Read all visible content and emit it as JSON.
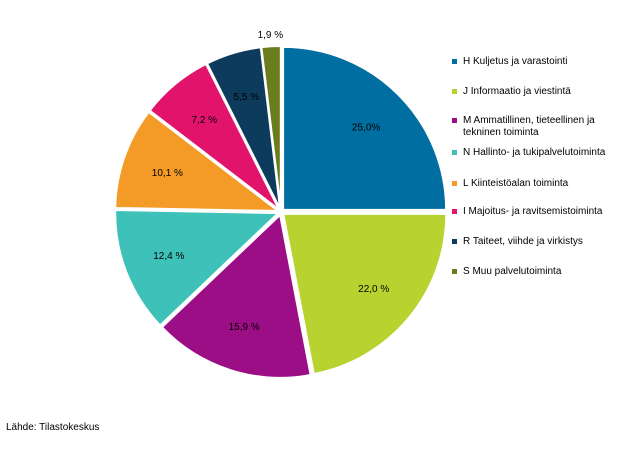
{
  "chart_data": {
    "type": "pie",
    "slices": [
      {
        "label": "H Kuljetus ja varastointi",
        "value": 25.0,
        "display": "25,0%",
        "color": "#006ea0"
      },
      {
        "label": "J Informaatio ja viestintä",
        "value": 22.0,
        "display": "22,0 %",
        "color": "#b8d22f"
      },
      {
        "label": "M Ammatillinen, tieteellinen ja tekninen toiminta",
        "value": 15.9,
        "display": "15,9 %",
        "color": "#9b0e85"
      },
      {
        "label": "N Hallinto- ja tukipalvelutoiminta",
        "value": 12.4,
        "display": "12,4 %",
        "color": "#3ec1b8"
      },
      {
        "label": "L Kiinteistöalan toiminta",
        "value": 10.1,
        "display": "10,1 %",
        "color": "#f39b26"
      },
      {
        "label": "I Majoitus- ja ravitsemistoiminta",
        "value": 7.2,
        "display": "7,2 %",
        "color": "#e1136b"
      },
      {
        "label": "R Taiteet, viihde ja virkistys",
        "value": 5.5,
        "display": "5,5 %",
        "color": "#0d3b5c"
      },
      {
        "label": "S Muu palvelutoiminta",
        "value": 1.9,
        "display": "1,9 %",
        "color": "#6b7c1d"
      }
    ],
    "start_angle": "12 o'clock",
    "direction": "clockwise",
    "legend_position": "right"
  },
  "source": "Lähde: Tilastokeskus"
}
